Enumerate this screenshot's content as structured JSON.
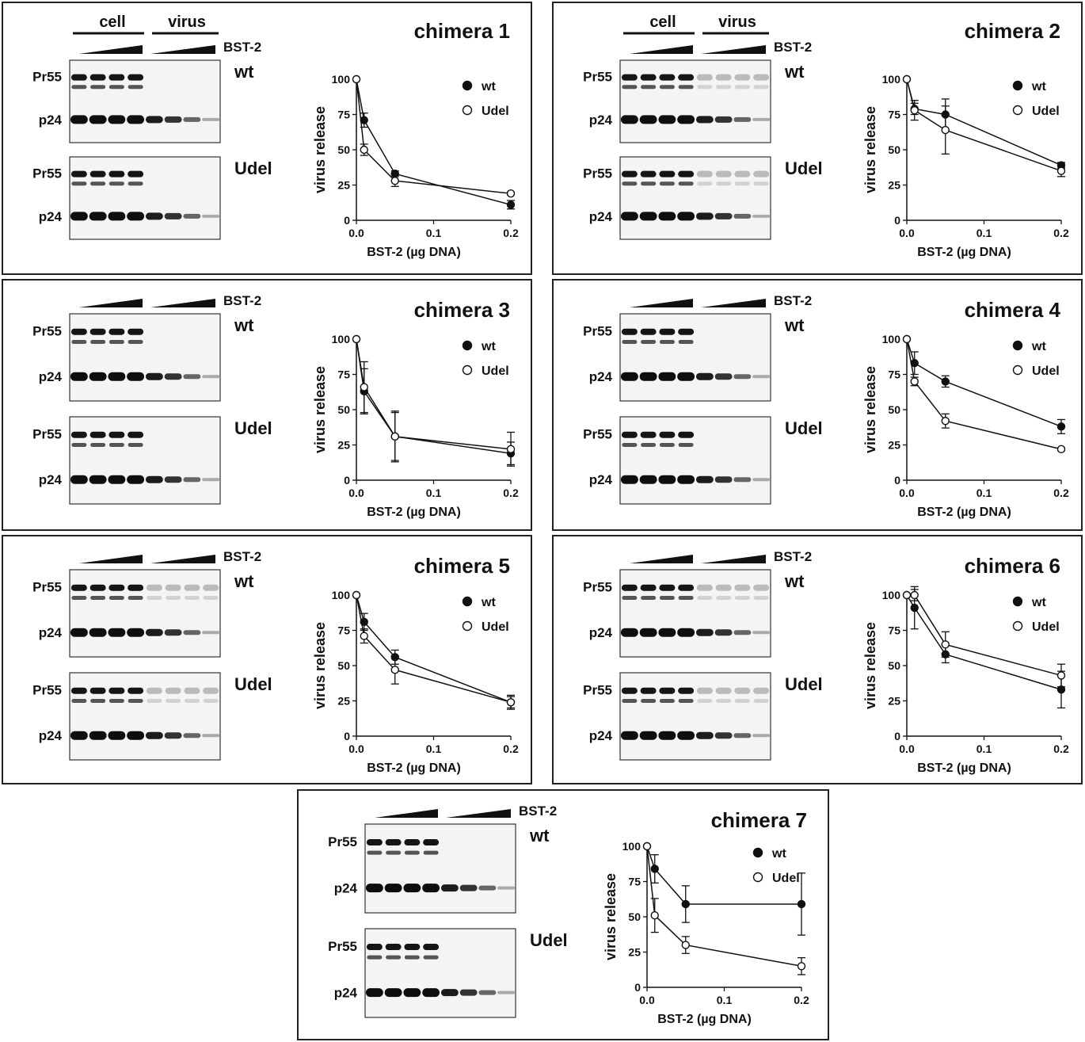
{
  "common": {
    "lane_labels": {
      "cell": "cell",
      "virus": "virus"
    },
    "bst2": "BST-2",
    "bands": {
      "pr55": "Pr55",
      "p24": "p24"
    },
    "construct": {
      "wt": "wt",
      "udel": "Udel"
    },
    "legend": {
      "wt": "wt",
      "udel": "Udel"
    },
    "ylabel": "virus release",
    "xlabel": "BST-2 (µg DNA)",
    "yticks": [
      "0",
      "25",
      "50",
      "75",
      "100"
    ],
    "xticks": [
      "0.0",
      "0.1",
      "0.2"
    ],
    "colors": {
      "filled": "#111111",
      "open": "#ffffff",
      "frame": "#222222"
    }
  },
  "chart_data": [
    {
      "type": "line",
      "title": "chimera 1",
      "x": [
        0,
        0.01,
        0.05,
        0.2
      ],
      "xlabel": "BST-2 (µg DNA)",
      "ylabel": "virus release",
      "xlim": [
        0,
        0.2
      ],
      "ylim": [
        0,
        100
      ],
      "series": [
        {
          "name": "wt",
          "marker": "filled",
          "values": [
            100,
            71,
            33,
            11
          ],
          "err": [
            0,
            5,
            2,
            3
          ]
        },
        {
          "name": "Udel",
          "marker": "open",
          "values": [
            100,
            50,
            28,
            19
          ],
          "err": [
            0,
            4,
            4,
            1
          ]
        }
      ]
    },
    {
      "type": "line",
      "title": "chimera 2",
      "x": [
        0,
        0.01,
        0.05,
        0.2
      ],
      "xlabel": "BST-2 (µg DNA)",
      "ylabel": "virus release",
      "xlim": [
        0,
        0.2
      ],
      "ylim": [
        0,
        100
      ],
      "series": [
        {
          "name": "wt",
          "marker": "filled",
          "values": [
            100,
            79,
            75,
            39
          ],
          "err": [
            0,
            4,
            11,
            2
          ]
        },
        {
          "name": "Udel",
          "marker": "open",
          "values": [
            100,
            78,
            64,
            35
          ],
          "err": [
            0,
            7,
            17,
            4
          ]
        }
      ]
    },
    {
      "type": "line",
      "title": "chimera 3",
      "x": [
        0,
        0.01,
        0.05,
        0.2
      ],
      "xlabel": "BST-2 (µg DNA)",
      "ylabel": "virus release",
      "xlim": [
        0,
        0.2
      ],
      "ylim": [
        0,
        100
      ],
      "series": [
        {
          "name": "wt",
          "marker": "filled",
          "values": [
            100,
            63,
            31,
            19
          ],
          "err": [
            0,
            16,
            17,
            8
          ]
        },
        {
          "name": "Udel",
          "marker": "open",
          "values": [
            100,
            66,
            31,
            22
          ],
          "err": [
            0,
            18,
            18,
            12
          ]
        }
      ]
    },
    {
      "type": "line",
      "title": "chimera 4",
      "x": [
        0,
        0.01,
        0.05,
        0.2
      ],
      "xlabel": "BST-2 (µg DNA)",
      "ylabel": "virus release",
      "xlim": [
        0,
        0.2
      ],
      "ylim": [
        0,
        100
      ],
      "series": [
        {
          "name": "wt",
          "marker": "filled",
          "values": [
            100,
            83,
            70,
            38
          ],
          "err": [
            0,
            8,
            4,
            5
          ]
        },
        {
          "name": "Udel",
          "marker": "open",
          "values": [
            100,
            70,
            42,
            22
          ],
          "err": [
            0,
            3,
            5,
            1
          ]
        }
      ]
    },
    {
      "type": "line",
      "title": "chimera 5",
      "x": [
        0,
        0.01,
        0.05,
        0.2
      ],
      "xlabel": "BST-2 (µg DNA)",
      "ylabel": "virus release",
      "xlim": [
        0,
        0.2
      ],
      "ylim": [
        0,
        100
      ],
      "series": [
        {
          "name": "wt",
          "marker": "filled",
          "values": [
            100,
            81,
            56,
            24
          ],
          "err": [
            0,
            6,
            5,
            5
          ]
        },
        {
          "name": "Udel",
          "marker": "open",
          "values": [
            100,
            71,
            47,
            24
          ],
          "err": [
            0,
            5,
            10,
            4
          ]
        }
      ]
    },
    {
      "type": "line",
      "title": "chimera 6",
      "x": [
        0,
        0.01,
        0.05,
        0.2
      ],
      "xlabel": "BST-2 (µg DNA)",
      "ylabel": "virus release",
      "xlim": [
        0,
        0.2
      ],
      "ylim": [
        0,
        100
      ],
      "series": [
        {
          "name": "wt",
          "marker": "filled",
          "values": [
            100,
            91,
            58,
            33
          ],
          "err": [
            0,
            15,
            6,
            13
          ]
        },
        {
          "name": "Udel",
          "marker": "open",
          "values": [
            100,
            100,
            65,
            43
          ],
          "err": [
            0,
            4,
            9,
            8
          ]
        }
      ]
    },
    {
      "type": "line",
      "title": "chimera 7",
      "x": [
        0,
        0.01,
        0.05,
        0.2
      ],
      "xlabel": "BST-2 (µg DNA)",
      "ylabel": "virus release",
      "xlim": [
        0,
        0.2
      ],
      "ylim": [
        0,
        100
      ],
      "series": [
        {
          "name": "wt",
          "marker": "filled",
          "values": [
            100,
            84,
            59,
            59
          ],
          "err": [
            0,
            10,
            13,
            22
          ]
        },
        {
          "name": "Udel",
          "marker": "open",
          "values": [
            100,
            51,
            30,
            15
          ],
          "err": [
            0,
            12,
            6,
            6
          ]
        }
      ]
    }
  ]
}
